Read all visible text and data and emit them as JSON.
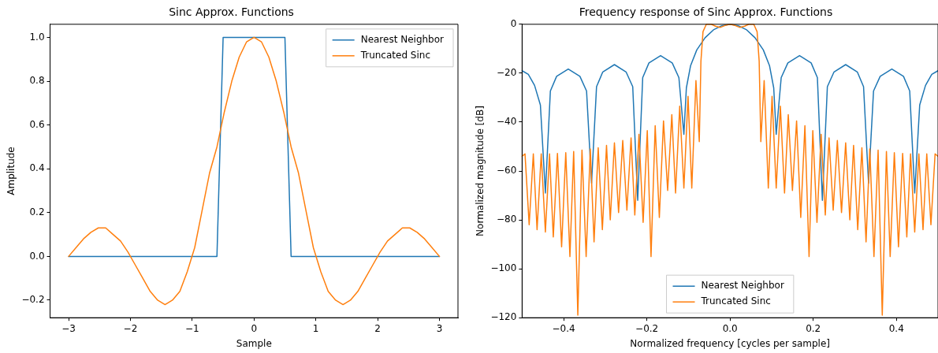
{
  "chart_data": [
    {
      "type": "line",
      "title": "Sinc Approx. Functions",
      "xlabel": "Sample",
      "ylabel": "Amplitude",
      "xlim": [
        -3.3,
        3.3
      ],
      "ylim": [
        -0.28,
        1.06
      ],
      "xticks": [
        {
          "value": -3,
          "label": "−3"
        },
        {
          "value": -2,
          "label": "−2"
        },
        {
          "value": -1,
          "label": "−1"
        },
        0,
        1,
        2,
        3
      ],
      "yticks": [
        {
          "value": -0.2,
          "label": "−0.2"
        },
        {
          "value": 0,
          "label": "0.0"
        },
        {
          "value": 0.2,
          "label": "0.2"
        },
        {
          "value": 0.4,
          "label": "0.4"
        },
        {
          "value": 0.6,
          "label": "0.6"
        },
        {
          "value": 0.8,
          "label": "0.8"
        },
        {
          "value": 1,
          "label": "1.0"
        }
      ],
      "grid": false,
      "legend": "top right",
      "marker": "none",
      "line_style": "solid",
      "series": [
        {
          "name": "Nearest Neighbor",
          "color": "#1f77b4",
          "x": [
            -3,
            -0.6,
            -0.5,
            0.5,
            0.6,
            3
          ],
          "values": [
            0,
            0,
            1,
            1,
            0,
            0
          ]
        },
        {
          "name": "Truncated Sinc",
          "color": "#ff7f0e",
          "x": [
            -3,
            -2.88,
            -2.76,
            -2.64,
            -2.52,
            -2.4,
            -2.28,
            -2.16,
            -2.04,
            -1.92,
            -1.8,
            -1.68,
            -1.56,
            -1.44,
            -1.32,
            -1.2,
            -1.08,
            -0.96,
            -0.84,
            -0.72,
            -0.6,
            -0.48,
            -0.36,
            -0.24,
            -0.12,
            0,
            0.12,
            0.24,
            0.36,
            0.48,
            0.6,
            0.72,
            0.84,
            0.96,
            1.08,
            1.2,
            1.32,
            1.44,
            1.56,
            1.68,
            1.8,
            1.92,
            2.04,
            2.16,
            2.28,
            2.4,
            2.52,
            2.64,
            2.76,
            2.88,
            3
          ],
          "values": [
            0,
            0.04,
            0.08,
            0.11,
            0.13,
            0.13,
            0.1,
            0.07,
            0.02,
            -0.04,
            -0.1,
            -0.16,
            -0.2,
            -0.22,
            -0.2,
            -0.16,
            -0.07,
            0.04,
            0.21,
            0.38,
            0.5,
            0.66,
            0.8,
            0.91,
            0.98,
            1,
            0.98,
            0.91,
            0.8,
            0.66,
            0.5,
            0.38,
            0.21,
            0.04,
            -0.07,
            -0.16,
            -0.2,
            -0.22,
            -0.2,
            -0.16,
            -0.1,
            -0.04,
            0.02,
            0.07,
            0.1,
            0.13,
            0.13,
            0.11,
            0.08,
            0.04,
            0
          ]
        }
      ]
    },
    {
      "type": "line",
      "title": "Frequency response of Sinc Approx. Functions",
      "xlabel": "Normalized frequency [cycles per sample]",
      "ylabel": "Normalized magnitude [dB]",
      "xlim": [
        -0.5,
        0.5
      ],
      "ylim": [
        -120,
        0
      ],
      "xticks": [
        {
          "value": -0.4,
          "label": "−0.4"
        },
        {
          "value": -0.2,
          "label": "−0.2"
        },
        {
          "value": 0,
          "label": "0.0"
        },
        {
          "value": 0.2,
          "label": "0.2"
        },
        {
          "value": 0.4,
          "label": "0.4"
        }
      ],
      "yticks": [
        {
          "value": -120,
          "label": "−120"
        },
        {
          "value": -100,
          "label": "−100"
        },
        {
          "value": -80,
          "label": "−80"
        },
        {
          "value": -60,
          "label": "−60"
        },
        {
          "value": -40,
          "label": "−40"
        },
        {
          "value": -20,
          "label": "−20"
        },
        0
      ],
      "grid": false,
      "legend": "bottom",
      "marker": "none",
      "line_style": "solid",
      "series": [
        {
          "name": "Nearest Neighbor",
          "color": "#1f77b4",
          "x": [
            -0.5,
            -0.485,
            -0.47,
            -0.456,
            -0.444,
            -0.432,
            -0.417,
            -0.389,
            -0.361,
            -0.345,
            -0.333,
            -0.321,
            -0.306,
            -0.278,
            -0.25,
            -0.234,
            -0.222,
            -0.21,
            -0.195,
            -0.167,
            -0.139,
            -0.123,
            -0.111,
            -0.105,
            -0.095,
            -0.08,
            -0.06,
            -0.04,
            -0.02,
            0,
            0.02,
            0.04,
            0.06,
            0.08,
            0.095,
            0.105,
            0.111,
            0.123,
            0.139,
            0.167,
            0.195,
            0.21,
            0.222,
            0.234,
            0.25,
            0.278,
            0.306,
            0.321,
            0.333,
            0.345,
            0.361,
            0.389,
            0.417,
            0.432,
            0.444,
            0.456,
            0.47,
            0.485,
            0.5
          ],
          "values": [
            -19,
            -20.5,
            -25,
            -33,
            -69,
            -27.3,
            -21.3,
            -18.3,
            -21.3,
            -27.3,
            -65,
            -25.5,
            -19.5,
            -16.5,
            -19.5,
            -25.5,
            -72,
            -21.8,
            -15.8,
            -12.8,
            -15.8,
            -21.8,
            -45,
            -26,
            -17,
            -10.5,
            -5.5,
            -2.3,
            -0.6,
            0,
            -0.6,
            -2.3,
            -5.5,
            -10.5,
            -17,
            -26,
            -45,
            -21.8,
            -15.8,
            -12.8,
            -15.8,
            -21.8,
            -72,
            -25.5,
            -19.5,
            -16.5,
            -19.5,
            -25.5,
            -65,
            -27.3,
            -21.3,
            -18.3,
            -21.3,
            -27.3,
            -69,
            -33,
            -25,
            -20.5,
            -19
          ]
        },
        {
          "name": "Truncated Sinc",
          "color": "#ff7f0e",
          "x": [
            -0.5,
            -0.493,
            -0.483,
            -0.473,
            -0.464,
            -0.454,
            -0.444,
            -0.434,
            -0.425,
            -0.415,
            -0.405,
            -0.395,
            -0.385,
            -0.376,
            -0.366,
            -0.356,
            -0.346,
            -0.336,
            -0.327,
            -0.317,
            -0.307,
            -0.297,
            -0.288,
            -0.278,
            -0.268,
            -0.258,
            -0.248,
            -0.238,
            -0.229,
            -0.219,
            -0.209,
            -0.199,
            -0.19,
            -0.18,
            -0.17,
            -0.16,
            -0.15,
            -0.14,
            -0.131,
            -0.121,
            -0.111,
            -0.101,
            -0.092,
            -0.082,
            -0.074,
            -0.07,
            -0.065,
            -0.057,
            -0.045,
            -0.035,
            -0.024,
            -0.012,
            0,
            0.012,
            0.024,
            0.035,
            0.045,
            0.057,
            0.065,
            0.07,
            0.074,
            0.082,
            0.092,
            0.101,
            0.111,
            0.121,
            0.131,
            0.14,
            0.15,
            0.16,
            0.17,
            0.18,
            0.19,
            0.199,
            0.209,
            0.219,
            0.229,
            0.238,
            0.248,
            0.258,
            0.268,
            0.278,
            0.288,
            0.297,
            0.307,
            0.317,
            0.327,
            0.336,
            0.346,
            0.356,
            0.366,
            0.376,
            0.385,
            0.395,
            0.405,
            0.415,
            0.425,
            0.434,
            0.444,
            0.454,
            0.464,
            0.473,
            0.483,
            0.493,
            0.5
          ],
          "values": [
            -54,
            -53,
            -82,
            -53,
            -84,
            -53,
            -85,
            -53,
            -87,
            -52.8,
            -91,
            -52.5,
            -95,
            -52,
            -119,
            -51.5,
            -95,
            -51,
            -89,
            -50.5,
            -84,
            -49.5,
            -80,
            -48.5,
            -77,
            -47.5,
            -76,
            -46.5,
            -78,
            -45,
            -81,
            -43.5,
            -95,
            -41.5,
            -79,
            -39.5,
            -68,
            -37,
            -69,
            -33.5,
            -67,
            -29.5,
            -67,
            -23,
            -48,
            -15,
            -3,
            0,
            0,
            -0.8,
            -1.3,
            -0.5,
            0,
            -0.5,
            -1.3,
            -0.8,
            0,
            0,
            -3,
            -15,
            -48,
            -23,
            -67,
            -29.5,
            -67,
            -33.5,
            -69,
            -37,
            -68,
            -39.5,
            -79,
            -41.5,
            -95,
            -43.5,
            -81,
            -45,
            -78,
            -46.5,
            -76,
            -47.5,
            -77,
            -48.5,
            -80,
            -49.5,
            -84,
            -50.5,
            -89,
            -51,
            -95,
            -51.5,
            -119,
            -52,
            -95,
            -52.5,
            -91,
            -52.8,
            -87,
            -53,
            -85,
            -53,
            -84,
            -53,
            -82,
            -53,
            -54
          ]
        }
      ]
    }
  ]
}
